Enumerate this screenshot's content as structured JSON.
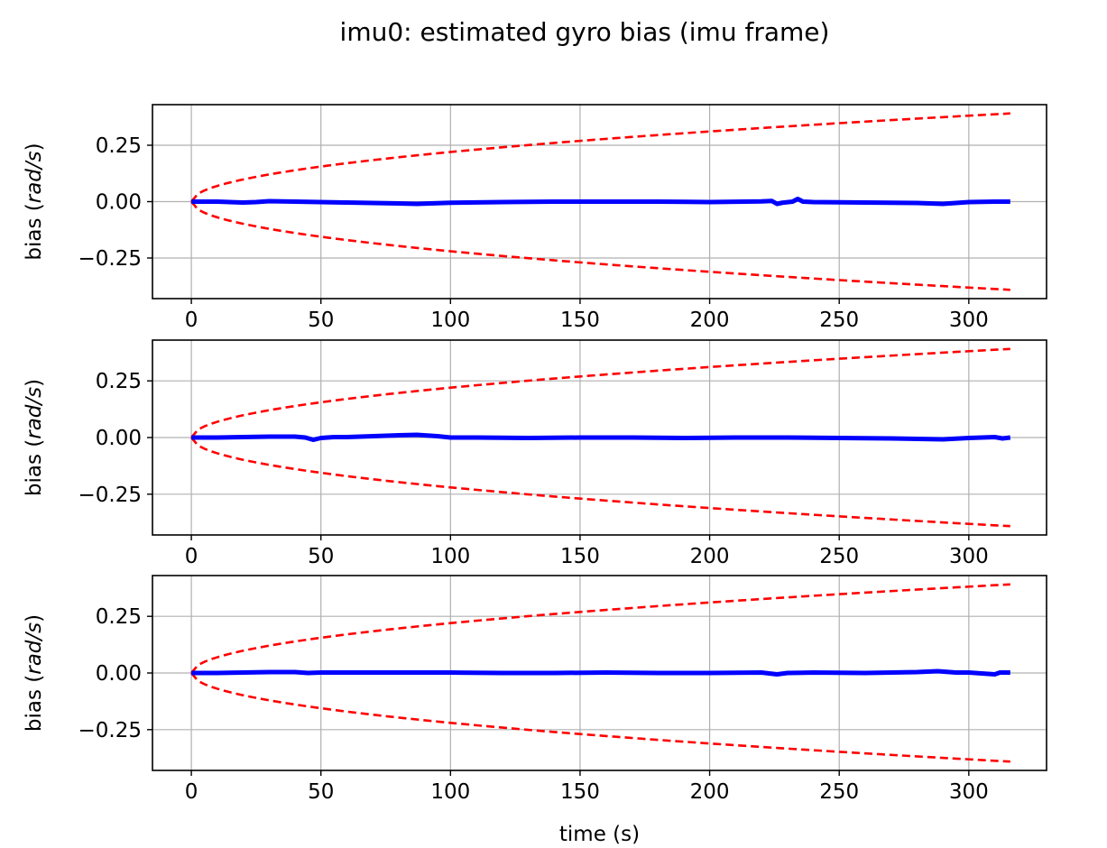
{
  "title": "imu0: estimated gyro bias (imu frame)",
  "chart_data": [
    {
      "type": "line",
      "ylabel_prefix": "bias (",
      "ylabel_unit": "rad/s",
      "ylabel_suffix": ")",
      "xlabel": "",
      "xlim": [
        -15,
        330
      ],
      "ylim": [
        -0.43,
        0.43
      ],
      "xticks": [
        0,
        50,
        100,
        150,
        200,
        250,
        300
      ],
      "xtick_labels": [
        "0",
        "50",
        "100",
        "150",
        "200",
        "250",
        "300"
      ],
      "yticks": [
        0.25,
        0,
        -0.25
      ],
      "ytick_labels": [
        "0.25",
        "0.00",
        "−0.25"
      ],
      "grid": true,
      "bias": {
        "color": "#0000ff",
        "x": [
          0,
          10,
          20,
          25,
          30,
          40,
          60,
          80,
          87,
          100,
          120,
          140,
          160,
          180,
          200,
          220,
          224,
          226,
          228,
          232,
          234,
          236,
          240,
          260,
          280,
          290,
          300,
          310,
          316
        ],
        "y": [
          0,
          0,
          -0.004,
          -0.002,
          0.002,
          0,
          -0.004,
          -0.008,
          -0.01,
          -0.005,
          -0.002,
          0,
          0,
          0,
          -0.002,
          0.001,
          0.003,
          -0.01,
          -0.005,
          0,
          0.012,
          0,
          -0.002,
          -0.004,
          -0.006,
          -0.01,
          -0.002,
          0,
          0
        ]
      },
      "bound": {
        "color": "#ff0000",
        "scale": 0.022,
        "t_end": 316
      }
    },
    {
      "type": "line",
      "ylabel_prefix": "bias (",
      "ylabel_unit": "rad/s",
      "ylabel_suffix": ")",
      "xlabel": "",
      "xlim": [
        -15,
        330
      ],
      "ylim": [
        -0.43,
        0.43
      ],
      "xticks": [
        0,
        50,
        100,
        150,
        200,
        250,
        300
      ],
      "xtick_labels": [
        "0",
        "50",
        "100",
        "150",
        "200",
        "250",
        "300"
      ],
      "yticks": [
        0.25,
        0,
        -0.25
      ],
      "ytick_labels": [
        "0.25",
        "0.00",
        "−0.25"
      ],
      "grid": true,
      "bias": {
        "color": "#0000ff",
        "x": [
          0,
          10,
          20,
          30,
          40,
          44,
          47,
          50,
          55,
          60,
          70,
          80,
          87,
          95,
          100,
          110,
          130,
          150,
          170,
          190,
          210,
          230,
          250,
          270,
          290,
          300,
          310,
          313,
          316
        ],
        "y": [
          0,
          0,
          0.002,
          0.004,
          0.004,
          0,
          -0.01,
          -0.002,
          0.002,
          0.002,
          0.006,
          0.01,
          0.012,
          0.006,
          0,
          0,
          -0.002,
          0,
          0,
          -0.002,
          0,
          0,
          -0.002,
          -0.004,
          -0.008,
          -0.002,
          0.002,
          -0.004,
          0
        ]
      },
      "bound": {
        "color": "#ff0000",
        "scale": 0.022,
        "t_end": 316
      }
    },
    {
      "type": "line",
      "ylabel_prefix": "bias (",
      "ylabel_unit": "rad/s",
      "ylabel_suffix": ")",
      "xlabel": "time (s)",
      "xlim": [
        -15,
        330
      ],
      "ylim": [
        -0.43,
        0.43
      ],
      "xticks": [
        0,
        50,
        100,
        150,
        200,
        250,
        300
      ],
      "xtick_labels": [
        "0",
        "50",
        "100",
        "150",
        "200",
        "250",
        "300"
      ],
      "yticks": [
        0.25,
        0,
        -0.25
      ],
      "ytick_labels": [
        "0.25",
        "0.00",
        "−0.25"
      ],
      "grid": true,
      "bias": {
        "color": "#0000ff",
        "x": [
          0,
          10,
          20,
          30,
          40,
          45,
          50,
          60,
          80,
          100,
          120,
          140,
          160,
          180,
          200,
          220,
          226,
          230,
          240,
          260,
          280,
          288,
          295,
          300,
          310,
          312,
          316
        ],
        "y": [
          0,
          0,
          0.002,
          0.004,
          0.004,
          0,
          0.002,
          0.002,
          0.002,
          0.002,
          0,
          0,
          0.002,
          0,
          0,
          0.002,
          -0.006,
          0,
          0.002,
          0,
          0.004,
          0.008,
          0.002,
          0.002,
          -0.006,
          0.002,
          0.002
        ]
      },
      "bound": {
        "color": "#ff0000",
        "scale": 0.022,
        "t_end": 316
      }
    }
  ]
}
